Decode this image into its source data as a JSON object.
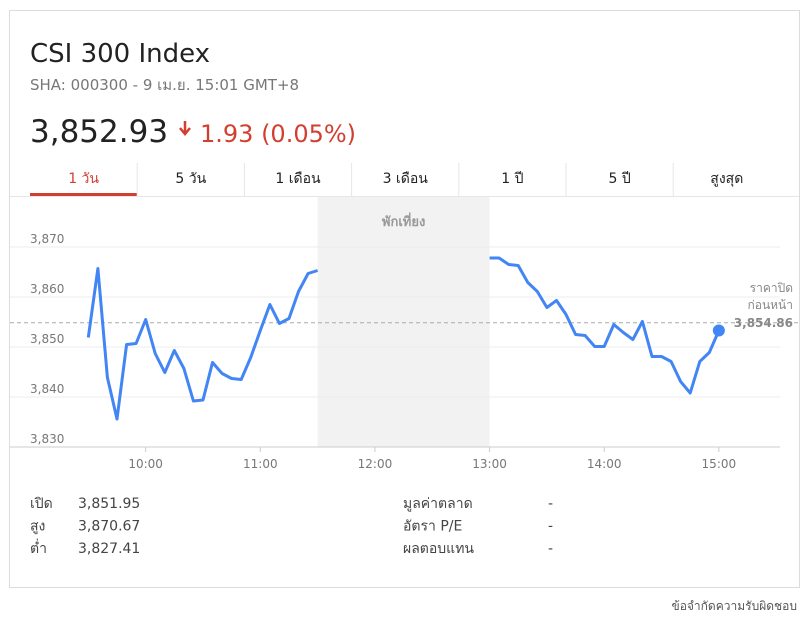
{
  "header": {
    "title": "CSI 300 Index",
    "subtitle": "SHA: 000300 - 9 เม.ย. 15:01 GMT+8",
    "price": "3,852.93",
    "change": "1.93 (0.05%)"
  },
  "tabs": [
    "1 วัน",
    "5 วัน",
    "1 เดือน",
    "3 เดือน",
    "1 ปี",
    "5 ปี",
    "สูงสุด"
  ],
  "active_tab": 0,
  "chart_data": {
    "type": "line",
    "color": "#4285f4",
    "x": [
      570,
      575,
      580,
      585,
      590,
      595,
      600,
      605,
      610,
      615,
      620,
      625,
      630,
      635,
      640,
      645,
      650,
      655,
      660,
      665,
      670,
      675,
      680,
      685,
      690,
      null,
      780,
      785,
      790,
      795,
      800,
      805,
      810,
      815,
      820,
      825,
      830,
      835,
      840,
      845,
      850,
      855,
      860,
      865,
      870,
      875,
      880,
      885,
      890,
      895,
      900
    ],
    "values": [
      3851.9,
      3865.7,
      3843.9,
      3835.6,
      3850.5,
      3850.7,
      3855.5,
      3848.7,
      3844.9,
      3849.3,
      3845.7,
      3839.2,
      3839.4,
      3846.9,
      3844.7,
      3843.7,
      3843.5,
      3847.9,
      3853.3,
      3858.5,
      3854.7,
      3855.7,
      3861.1,
      3864.7,
      3865.3,
      null,
      3867.8,
      3867.8,
      3866.5,
      3866.3,
      3862.9,
      3861.1,
      3857.9,
      3859.3,
      3856.5,
      3852.5,
      3852.3,
      3850.1,
      3850.1,
      3854.5,
      3852.9,
      3851.5,
      3855.1,
      3848.1,
      3848.1,
      3847.1,
      3843.1,
      3840.8,
      3847.1,
      3848.9,
      3853.3
    ],
    "xlim": [
      529,
      932
    ],
    "xticks": [
      {
        "value": 600,
        "label": "10:00"
      },
      {
        "value": 660,
        "label": "11:00"
      },
      {
        "value": 720,
        "label": "12:00"
      },
      {
        "value": 780,
        "label": "13:00"
      },
      {
        "value": 840,
        "label": "14:00"
      },
      {
        "value": 900,
        "label": "15:00"
      }
    ],
    "ylim": [
      3830,
      3880
    ],
    "yticks": [
      {
        "value": 3830,
        "label": "3,830"
      },
      {
        "value": 3840,
        "label": "3,840"
      },
      {
        "value": 3850,
        "label": "3,850"
      },
      {
        "value": 3860,
        "label": "3,860"
      },
      {
        "value": 3870,
        "label": "3,870"
      }
    ],
    "grid": true,
    "break": {
      "label": "พักเที่ยง",
      "range": [
        690,
        780
      ]
    },
    "previous_close": {
      "title": [
        "ราคาปิด",
        "ก่อนหน้า"
      ],
      "value": 3854.86,
      "label": "3,854.86"
    }
  },
  "stats": [
    [
      "เปิด",
      "3,851.95"
    ],
    [
      "สูง",
      "3,870.67"
    ],
    [
      "ต่ำ",
      "3,827.41"
    ],
    [
      "มูลค่าตลาด",
      "-"
    ],
    [
      "อัตรา P/E",
      "-"
    ],
    [
      "ผลตอบแทน",
      "-"
    ]
  ],
  "footer": "ข้อจำกัดความรับผิดชอบ"
}
